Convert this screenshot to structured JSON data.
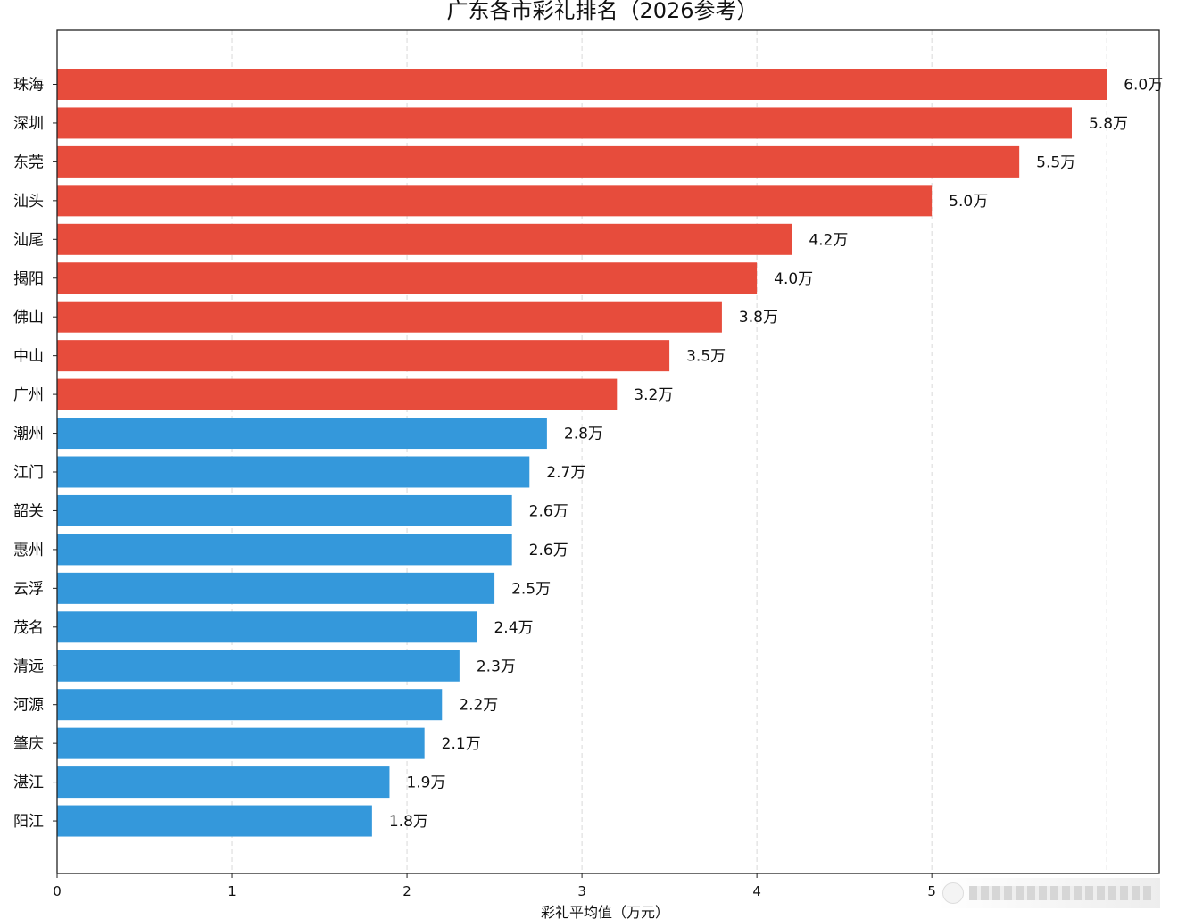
{
  "chart_data": {
    "type": "bar",
    "orientation": "horizontal",
    "title": "广东各市彩礼排名（2026参考）",
    "xlabel": "彩礼平均值（万元）",
    "ylabel": "",
    "xlim": [
      0,
      6.3
    ],
    "xticks": [
      "0",
      "1",
      "2",
      "3",
      "4",
      "5"
    ],
    "grid": "vertical dashed",
    "value_suffix": "万",
    "categories": [
      "珠海",
      "深圳",
      "东莞",
      "汕头",
      "汕尾",
      "揭阳",
      "佛山",
      "中山",
      "广州",
      "潮州",
      "江门",
      "韶关",
      "惠州",
      "云浮",
      "茂名",
      "清远",
      "河源",
      "肇庆",
      "湛江",
      "阳江"
    ],
    "values": [
      6.0,
      5.8,
      5.5,
      5.0,
      4.2,
      4.0,
      3.8,
      3.5,
      3.2,
      2.8,
      2.7,
      2.6,
      2.6,
      2.5,
      2.4,
      2.3,
      2.2,
      2.1,
      1.9,
      1.8
    ],
    "value_labels": [
      "6.0万",
      "5.8万",
      "5.5万",
      "5.0万",
      "4.2万",
      "4.0万",
      "3.8万",
      "3.5万",
      "3.2万",
      "2.8万",
      "2.7万",
      "2.6万",
      "2.6万",
      "2.5万",
      "2.4万",
      "2.3万",
      "2.2万",
      "2.1万",
      "1.9万",
      "1.8万"
    ],
    "colors": {
      "high": "#e74c3c",
      "low": "#3498db"
    },
    "color_threshold": 3.0
  }
}
